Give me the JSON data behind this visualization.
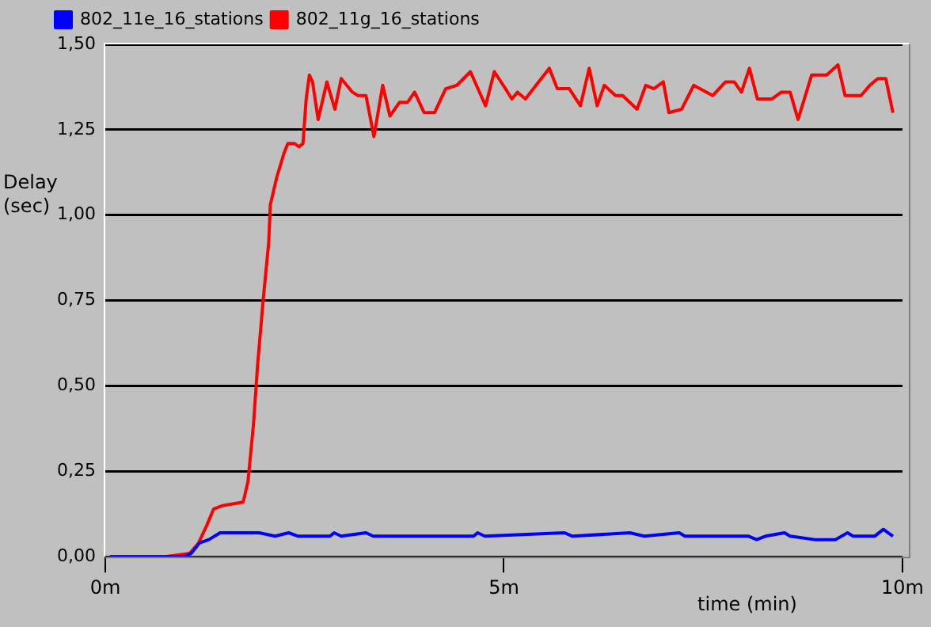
{
  "chart_data": {
    "type": "line",
    "xlabel": "time (min)",
    "ylabel": "Delay (sec)",
    "xlim": [
      0,
      10
    ],
    "xticks": [
      {
        "value": 0,
        "label": "0m"
      },
      {
        "value": 5,
        "label": "5m"
      },
      {
        "value": 10,
        "label": "10m"
      }
    ],
    "ylim": [
      0,
      1.5
    ],
    "yticks": [
      {
        "value": 0,
        "label": "0,00"
      },
      {
        "value": 0.25,
        "label": "0,25"
      },
      {
        "value": 0.5,
        "label": "0,50"
      },
      {
        "value": 0.75,
        "label": "0,75"
      },
      {
        "value": 1,
        "label": "1,00"
      },
      {
        "value": 1.25,
        "label": "1,25"
      },
      {
        "value": 1.5,
        "label": "1,50"
      }
    ],
    "grid": "y",
    "legend": "top left",
    "marker": "none",
    "line_style": "solid",
    "series": [
      {
        "name": "802_11e_16_stations",
        "color": "#0000ff",
        "x": [
          0.06,
          0.99,
          1.08,
          1.18,
          1.3,
          1.44,
          1.93,
          2.13,
          2.3,
          2.42,
          2.82,
          2.87,
          2.96,
          3.27,
          3.36,
          4.13,
          4.62,
          4.67,
          4.76,
          5.76,
          5.86,
          6.58,
          6.76,
          7.2,
          7.27,
          8.07,
          8.17,
          8.28,
          8.52,
          8.59,
          8.9,
          9.16,
          9.31,
          9.38,
          9.65,
          9.76,
          9.88
        ],
        "values": [
          0,
          0,
          0.01,
          0.04,
          0.05,
          0.07,
          0.07,
          0.06,
          0.07,
          0.06,
          0.06,
          0.07,
          0.06,
          0.07,
          0.06,
          0.06,
          0.06,
          0.07,
          0.06,
          0.07,
          0.06,
          0.07,
          0.06,
          0.07,
          0.06,
          0.06,
          0.05,
          0.06,
          0.07,
          0.06,
          0.05,
          0.05,
          0.07,
          0.06,
          0.06,
          0.08,
          0.06
        ]
      },
      {
        "name": "802_11g_16_stations",
        "color": "#ff0000",
        "x": [
          0.06,
          0.75,
          1.06,
          1.17,
          1.27,
          1.36,
          1.48,
          1.73,
          1.79,
          1.86,
          1.91,
          1.98,
          2.05,
          2.07,
          2.15,
          2.24,
          2.29,
          2.37,
          2.43,
          2.48,
          2.52,
          2.56,
          2.6,
          2.67,
          2.78,
          2.88,
          2.96,
          3.1,
          3.17,
          3.27,
          3.37,
          3.48,
          3.57,
          3.69,
          3.79,
          3.88,
          4.0,
          4.13,
          4.27,
          4.41,
          4.58,
          4.77,
          4.88,
          5.02,
          5.1,
          5.17,
          5.27,
          5.57,
          5.67,
          5.82,
          5.96,
          6.07,
          6.17,
          6.26,
          6.4,
          6.49,
          6.67,
          6.78,
          6.88,
          7.0,
          7.07,
          7.23,
          7.38,
          7.62,
          7.78,
          7.89,
          7.98,
          8.08,
          8.18,
          8.36,
          8.48,
          8.59,
          8.69,
          8.86,
          9.05,
          9.19,
          9.28,
          9.48,
          9.59,
          9.69,
          9.79,
          9.88
        ],
        "values": [
          0,
          0,
          0.01,
          0.04,
          0.09,
          0.14,
          0.15,
          0.16,
          0.22,
          0.39,
          0.56,
          0.75,
          0.92,
          1.03,
          1.11,
          1.18,
          1.21,
          1.21,
          1.2,
          1.21,
          1.34,
          1.41,
          1.39,
          1.28,
          1.39,
          1.31,
          1.4,
          1.36,
          1.35,
          1.35,
          1.23,
          1.38,
          1.29,
          1.33,
          1.33,
          1.36,
          1.3,
          1.3,
          1.37,
          1.38,
          1.42,
          1.32,
          1.42,
          1.37,
          1.34,
          1.36,
          1.34,
          1.43,
          1.37,
          1.37,
          1.32,
          1.43,
          1.32,
          1.38,
          1.35,
          1.35,
          1.31,
          1.38,
          1.37,
          1.39,
          1.3,
          1.31,
          1.38,
          1.35,
          1.39,
          1.39,
          1.36,
          1.43,
          1.34,
          1.34,
          1.36,
          1.36,
          1.28,
          1.41,
          1.41,
          1.44,
          1.35,
          1.35,
          1.38,
          1.4,
          1.4,
          1.3
        ]
      }
    ]
  }
}
